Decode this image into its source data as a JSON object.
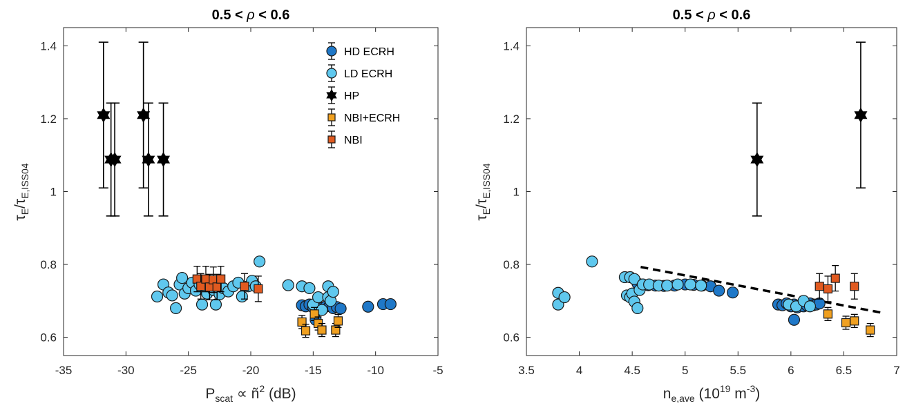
{
  "colors": {
    "hd_ecrh": "#1f78c8",
    "ld_ecrh": "#5fc8ee",
    "hp": "#000000",
    "nbi_ecrh": "#f0a020",
    "nbi": "#e05a20",
    "fit_line": "#000000"
  },
  "legend": {
    "position": "top-right (left panel)",
    "entries": [
      {
        "key": "hd_ecrh",
        "label": "HD ECRH",
        "marker": "circle"
      },
      {
        "key": "ld_ecrh",
        "label": "LD ECRH",
        "marker": "circle"
      },
      {
        "key": "hp",
        "label": "HP",
        "marker": "hexagram"
      },
      {
        "key": "nbi_ecrh",
        "label": "NBI+ECRH",
        "marker": "square"
      },
      {
        "key": "nbi",
        "label": "NBI",
        "marker": "square"
      }
    ]
  },
  "chart_data": [
    {
      "type": "scatter",
      "title_parts": [
        "0.5 < ",
        "ρ",
        " < 0.6"
      ],
      "xlabel_parts": {
        "main": "P",
        "sub": "scat",
        "rest": " ∝ ñ",
        "sup": "2",
        "tail": " (dB)"
      },
      "ylabel_parts": {
        "t1": "τ",
        "s1": "E",
        "slash": "/",
        "t2": "τ",
        "s2": "E,ISS04"
      },
      "xlim": [
        -35,
        -5
      ],
      "ylim": [
        0.55,
        1.45
      ],
      "xticks": [
        -35,
        -30,
        -25,
        -20,
        -15,
        -10,
        -5
      ],
      "xtick_labels": [
        "-35",
        "-30",
        "-25",
        "-20",
        "-15",
        "-10",
        "-5"
      ],
      "yticks": [
        0.6,
        0.8,
        1.0,
        1.2,
        1.4
      ],
      "ytick_labels": [
        "0.6",
        "0.8",
        "1",
        "1.2",
        "1.4"
      ],
      "grid": false,
      "series": [
        {
          "key": "hd_ecrh",
          "err": 0.01,
          "points": [
            [
              -15.9,
              0.688
            ],
            [
              -15.6,
              0.685
            ],
            [
              -15.3,
              0.69
            ],
            [
              -15.0,
              0.682
            ],
            [
              -14.6,
              0.686
            ],
            [
              -14.3,
              0.68
            ],
            [
              -14.0,
              0.684
            ],
            [
              -13.7,
              0.686
            ],
            [
              -13.4,
              0.68
            ],
            [
              -13.1,
              0.683
            ],
            [
              -12.8,
              0.679
            ],
            [
              -14.8,
              0.648
            ],
            [
              -10.6,
              0.684
            ],
            [
              -9.4,
              0.691
            ],
            [
              -8.8,
              0.691
            ]
          ]
        },
        {
          "key": "ld_ecrh",
          "err": 0.01,
          "points": [
            [
              -27.5,
              0.712
            ],
            [
              -27.0,
              0.745
            ],
            [
              -26.6,
              0.723
            ],
            [
              -26.3,
              0.715
            ],
            [
              -26.0,
              0.68
            ],
            [
              -25.7,
              0.745
            ],
            [
              -25.5,
              0.763
            ],
            [
              -25.3,
              0.72
            ],
            [
              -25.0,
              0.735
            ],
            [
              -24.7,
              0.75
            ],
            [
              -24.4,
              0.728
            ],
            [
              -24.1,
              0.745
            ],
            [
              -23.9,
              0.69
            ],
            [
              -23.5,
              0.72
            ],
            [
              -23.0,
              0.73
            ],
            [
              -22.8,
              0.69
            ],
            [
              -22.5,
              0.718
            ],
            [
              -22.2,
              0.735
            ],
            [
              -21.8,
              0.726
            ],
            [
              -21.4,
              0.74
            ],
            [
              -21.0,
              0.75
            ],
            [
              -20.7,
              0.712
            ],
            [
              -20.2,
              0.74
            ],
            [
              -19.9,
              0.755
            ],
            [
              -19.6,
              0.74
            ],
            [
              -19.3,
              0.808
            ],
            [
              -17.0,
              0.743
            ],
            [
              -15.9,
              0.74
            ],
            [
              -15.3,
              0.735
            ],
            [
              -15.0,
              0.69
            ],
            [
              -14.6,
              0.71
            ],
            [
              -14.3,
              0.675
            ],
            [
              -13.8,
              0.71
            ],
            [
              -13.6,
              0.7
            ],
            [
              -13.8,
              0.74
            ],
            [
              -13.4,
              0.725
            ]
          ]
        },
        {
          "key": "hp",
          "points": [
            [
              -31.8,
              1.21,
              0.2
            ],
            [
              -31.2,
              1.088,
              0.155
            ],
            [
              -30.9,
              1.088,
              0.155
            ],
            [
              -28.6,
              1.21,
              0.2
            ],
            [
              -28.2,
              1.088,
              0.155
            ],
            [
              -27.0,
              1.088,
              0.155
            ]
          ]
        },
        {
          "key": "nbi_ecrh",
          "err": 0.018,
          "points": [
            [
              -15.9,
              0.642
            ],
            [
              -15.6,
              0.618
            ],
            [
              -14.9,
              0.664
            ],
            [
              -14.6,
              0.638
            ],
            [
              -14.3,
              0.62
            ],
            [
              -13.2,
              0.62
            ],
            [
              -13.0,
              0.645
            ]
          ]
        },
        {
          "key": "nbi",
          "err": 0.035,
          "points": [
            [
              -24.3,
              0.76
            ],
            [
              -24.0,
              0.74
            ],
            [
              -23.6,
              0.76
            ],
            [
              -23.3,
              0.738
            ],
            [
              -23.0,
              0.758
            ],
            [
              -22.7,
              0.738
            ],
            [
              -22.4,
              0.76
            ],
            [
              -20.5,
              0.74
            ],
            [
              -19.4,
              0.733
            ]
          ]
        }
      ]
    },
    {
      "type": "scatter",
      "title_parts": [
        "0.5 < ",
        "ρ",
        " < 0.6"
      ],
      "xlabel_parts": {
        "main": "n",
        "sub": "e,ave",
        "rest": " (10",
        "sup": "19",
        "rest2": " m",
        "sup2": "-3",
        "tail": ")"
      },
      "ylabel_parts": {
        "t1": "τ",
        "s1": "E",
        "slash": "/",
        "t2": "τ",
        "s2": "E,ISS04"
      },
      "xlim": [
        3.5,
        7
      ],
      "ylim": [
        0.55,
        1.45
      ],
      "xticks": [
        3.5,
        4,
        4.5,
        5,
        5.5,
        6,
        6.5,
        7
      ],
      "xtick_labels": [
        "3.5",
        "4",
        "4.5",
        "5",
        "5.5",
        "6",
        "6.5",
        "7"
      ],
      "yticks": [
        0.6,
        0.8,
        1.0,
        1.2,
        1.4
      ],
      "ytick_labels": [
        "0.6",
        "0.8",
        "1",
        "1.2",
        "1.4"
      ],
      "grid": false,
      "fit_line": {
        "x": [
          4.58,
          6.85
        ],
        "y": [
          0.793,
          0.668
        ],
        "style": "dashed"
      },
      "series": [
        {
          "key": "hd_ecrh",
          "err": 0.01,
          "points": [
            [
              4.55,
              0.748
            ],
            [
              4.6,
              0.745
            ],
            [
              4.65,
              0.743
            ],
            [
              4.72,
              0.742
            ],
            [
              4.8,
              0.741
            ],
            [
              4.9,
              0.742
            ],
            [
              5.0,
              0.745
            ],
            [
              5.08,
              0.744
            ],
            [
              5.16,
              0.742
            ],
            [
              5.24,
              0.74
            ],
            [
              5.32,
              0.728
            ],
            [
              5.45,
              0.723
            ],
            [
              5.88,
              0.69
            ],
            [
              5.92,
              0.688
            ],
            [
              5.96,
              0.693
            ],
            [
              6.0,
              0.685
            ],
            [
              6.03,
              0.69
            ],
            [
              6.06,
              0.682
            ],
            [
              6.09,
              0.688
            ],
            [
              6.12,
              0.685
            ],
            [
              6.15,
              0.688
            ],
            [
              6.18,
              0.693
            ],
            [
              6.21,
              0.688
            ],
            [
              6.24,
              0.69
            ],
            [
              6.27,
              0.693
            ],
            [
              6.03,
              0.648
            ]
          ]
        },
        {
          "key": "ld_ecrh",
          "err": 0.01,
          "points": [
            [
              3.8,
              0.722
            ],
            [
              3.8,
              0.69
            ],
            [
              3.86,
              0.71
            ],
            [
              4.12,
              0.808
            ],
            [
              4.43,
              0.765
            ],
            [
              4.48,
              0.765
            ],
            [
              4.52,
              0.76
            ],
            [
              4.45,
              0.715
            ],
            [
              4.48,
              0.71
            ],
            [
              4.5,
              0.72
            ],
            [
              4.52,
              0.698
            ],
            [
              4.55,
              0.68
            ],
            [
              4.57,
              0.73
            ],
            [
              4.6,
              0.745
            ],
            [
              4.66,
              0.745
            ],
            [
              4.75,
              0.742
            ],
            [
              4.83,
              0.742
            ],
            [
              4.93,
              0.745
            ],
            [
              5.05,
              0.745
            ],
            [
              5.15,
              0.742
            ],
            [
              5.98,
              0.69
            ],
            [
              6.05,
              0.685
            ],
            [
              6.12,
              0.7
            ],
            [
              6.18,
              0.685
            ]
          ]
        },
        {
          "key": "hp",
          "points": [
            [
              5.68,
              1.088,
              0.155
            ],
            [
              6.66,
              1.21,
              0.2
            ]
          ]
        },
        {
          "key": "nbi_ecrh",
          "err": 0.018,
          "points": [
            [
              6.35,
              0.664
            ],
            [
              6.52,
              0.64
            ],
            [
              6.6,
              0.645
            ],
            [
              6.75,
              0.62
            ]
          ]
        },
        {
          "key": "nbi",
          "err": 0.035,
          "points": [
            [
              6.27,
              0.74
            ],
            [
              6.35,
              0.733
            ],
            [
              6.42,
              0.762
            ],
            [
              6.6,
              0.74
            ]
          ]
        }
      ]
    }
  ]
}
